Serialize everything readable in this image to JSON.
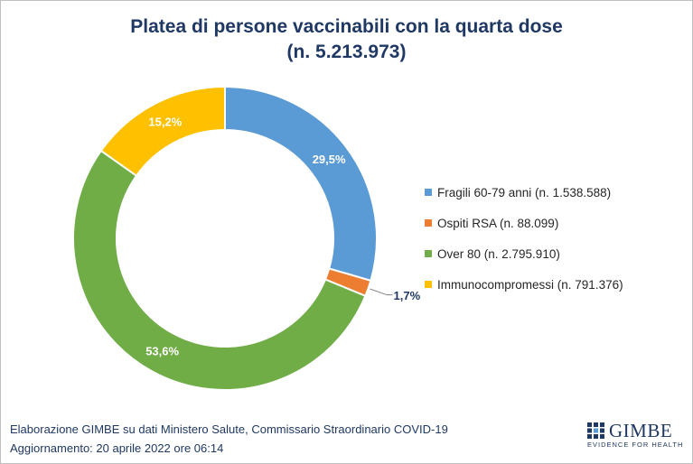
{
  "title_line1": "Platea di persone vaccinabili con la quarta dose",
  "title_line2": "(n. 5.213.973)",
  "chart_data": {
    "type": "pie",
    "title": "Platea di persone vaccinabili con la quarta dose (n. 5.213.973)",
    "legend_position": "right",
    "slices": [
      {
        "name": "Fragili 60-79 anni (n. 1.538.588)",
        "value": 29.5,
        "label": "29,5%",
        "color": "#5b9bd5"
      },
      {
        "name": "Ospiti RSA (n. 88.099)",
        "value": 1.7,
        "label": "1,7%",
        "color": "#ed7d31"
      },
      {
        "name": "Over 80 (n. 2.795.910)",
        "value": 53.6,
        "label": "53,6%",
        "color": "#70ad47"
      },
      {
        "name": "Immunocompromessi (n. 791.376)",
        "value": 15.2,
        "label": "15,2%",
        "color": "#ffc000"
      }
    ]
  },
  "footer": {
    "line1": "Elaborazione GIMBE su dati Ministero Salute, Commissario Straordinario COVID-19",
    "line2": "Aggiornamento: 20 aprile 2022 ore 06:14"
  },
  "logo": {
    "name": "GIMBE",
    "tagline": "EVIDENCE FOR HEALTH"
  }
}
